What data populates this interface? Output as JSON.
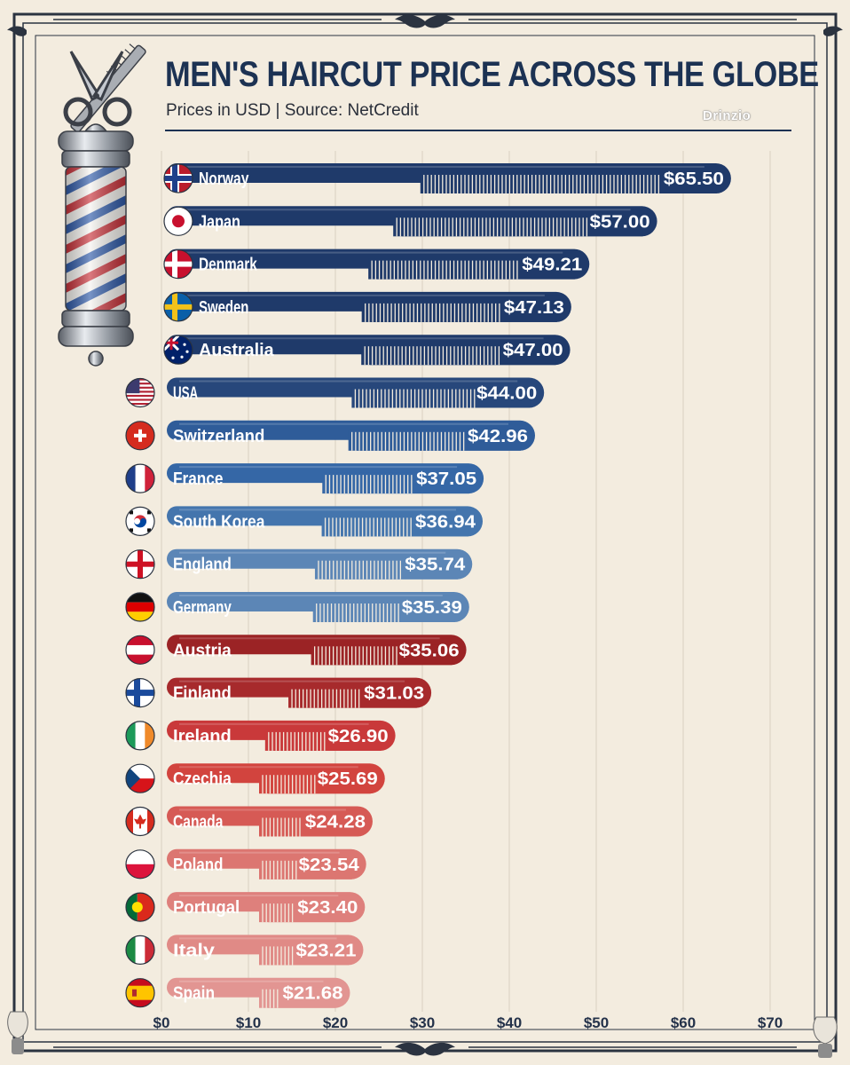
{
  "header": {
    "title": "MEN'S HAIRCUT PRICE ACROSS THE GLOBE",
    "subtitle": "Prices in USD | Source: NetCredit",
    "brand": "Drinzio"
  },
  "colors": {
    "background": "#f3ecdf",
    "title": "#1c3253",
    "high_band": "#1f3a6a",
    "mid_band": "#3567a6",
    "light_blue_band": "#5c86b6",
    "dark_red_band": "#9b2325",
    "red_band": "#c9393a",
    "light_red_band": "#de807c"
  },
  "chart_data": {
    "type": "bar",
    "orientation": "horizontal",
    "title": "MEN'S HAIRCUT PRICE ACROSS THE GLOBE",
    "subtitle": "Prices in USD | Source: NetCredit",
    "xlabel": "",
    "ylabel": "",
    "xlim": [
      0,
      70
    ],
    "xticks": [
      0,
      10,
      20,
      30,
      40,
      50,
      60,
      70
    ],
    "xtick_labels": [
      "$0",
      "$10",
      "$20",
      "$30",
      "$40",
      "$50",
      "$60",
      "$70"
    ],
    "grid": true,
    "categories": [
      "Norway",
      "Japan",
      "Denmark",
      "Sweden",
      "Australia",
      "USA",
      "Switzerland",
      "France",
      "South Korea",
      "England",
      "Germany",
      "Austria",
      "Finland",
      "Ireland",
      "Czechia",
      "Canada",
      "Poland",
      "Portugal",
      "Italy",
      "Spain"
    ],
    "values": [
      65.5,
      57.0,
      49.21,
      47.13,
      47.0,
      44.0,
      42.96,
      37.05,
      36.94,
      35.74,
      35.39,
      35.06,
      31.03,
      26.9,
      25.69,
      24.28,
      23.54,
      23.4,
      23.21,
      21.68
    ],
    "value_labels": [
      "$65.50",
      "$57.00",
      "$49.21",
      "$47.13",
      "$47.00",
      "$44.00",
      "$42.96",
      "$37.05",
      "$36.94",
      "$35.74",
      "$35.39",
      "$35.06",
      "$31.03",
      "$26.90",
      "$25.69",
      "$24.28",
      "$23.54",
      "$23.40",
      "$23.21",
      "$21.68"
    ],
    "bar_colors": [
      "#1f3a6a",
      "#1f3a6a",
      "#1f3a6a",
      "#1f3a6a",
      "#1f3a6a",
      "#27477b",
      "#2f5c99",
      "#3567a6",
      "#4475ad",
      "#5c86b6",
      "#5c86b6",
      "#9b2325",
      "#a72a2c",
      "#c9393a",
      "#d2443e",
      "#d65a55",
      "#dc7671",
      "#de807c",
      "#e08a86",
      "#e29592"
    ],
    "flags": [
      "norway-flag",
      "japan-flag",
      "denmark-flag",
      "sweden-flag",
      "australia-flag",
      "usa-flag",
      "switzerland-flag",
      "france-flag",
      "south-korea-flag",
      "england-flag",
      "germany-flag",
      "austria-flag",
      "finland-flag",
      "ireland-flag",
      "czechia-flag",
      "canada-flag",
      "poland-flag",
      "portugal-flag",
      "italy-flag",
      "spain-flag"
    ]
  }
}
